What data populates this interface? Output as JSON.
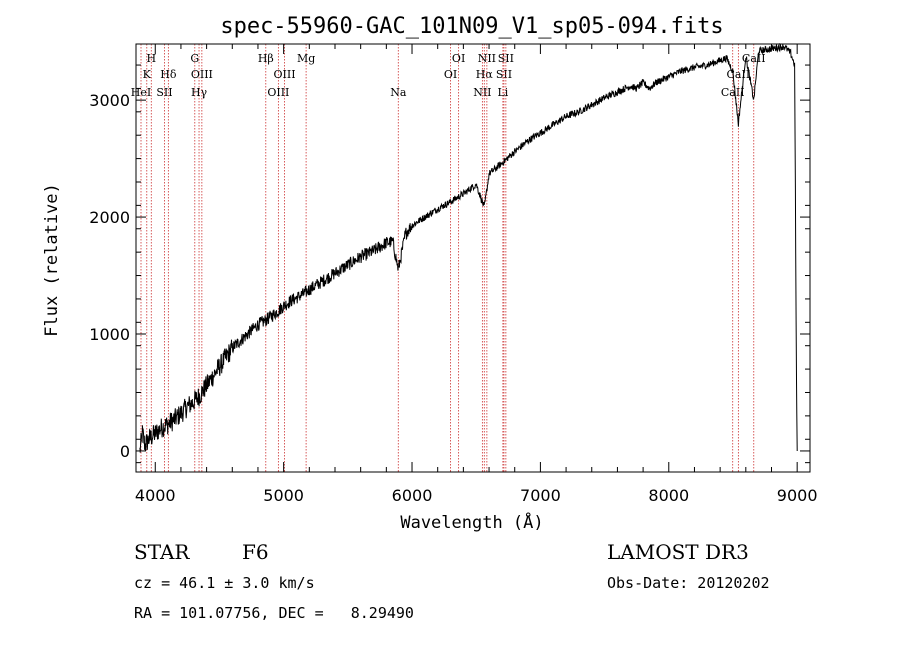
{
  "chart_data": {
    "type": "line",
    "title": "spec-55960-GAC_101N09_V1_sp05-094.fits",
    "xlabel": "Wavelength (Å)",
    "ylabel": "Flux (relative)",
    "xlim": [
      3850,
      9100
    ],
    "ylim": [
      -180,
      3480
    ],
    "xticks": [
      4000,
      5000,
      6000,
      7000,
      8000,
      9000
    ],
    "yticks": [
      0,
      1000,
      2000,
      3000
    ],
    "series": [
      {
        "name": "flux",
        "x": [
          3880,
          3900,
          3920,
          3950,
          4000,
          4050,
          4100,
          4150,
          4200,
          4250,
          4300,
          4350,
          4400,
          4450,
          4500,
          4550,
          4600,
          4650,
          4700,
          4750,
          4800,
          4850,
          4900,
          4950,
          5000,
          5050,
          5100,
          5150,
          5200,
          5300,
          5400,
          5500,
          5600,
          5700,
          5800,
          5850,
          5893,
          5950,
          6000,
          6100,
          6200,
          6300,
          6400,
          6500,
          6563,
          6600,
          6700,
          6800,
          6900,
          7000,
          7100,
          7200,
          7300,
          7400,
          7500,
          7600,
          7700,
          7750,
          7800,
          7850,
          7900,
          8000,
          8100,
          8200,
          8300,
          8400,
          8450,
          8498,
          8542,
          8600,
          8662,
          8700,
          8800,
          8900,
          8950,
          8980,
          8995,
          9000
        ],
        "y": [
          0,
          150,
          50,
          100,
          150,
          200,
          230,
          270,
          320,
          380,
          420,
          480,
          560,
          640,
          720,
          800,
          880,
          930,
          980,
          1030,
          1080,
          1110,
          1150,
          1190,
          1240,
          1280,
          1310,
          1340,
          1380,
          1450,
          1520,
          1590,
          1660,
          1710,
          1780,
          1790,
          1550,
          1860,
          1930,
          2000,
          2070,
          2130,
          2200,
          2280,
          2080,
          2370,
          2460,
          2560,
          2650,
          2720,
          2790,
          2860,
          2900,
          2960,
          3020,
          3070,
          3120,
          3100,
          3150,
          3100,
          3150,
          3200,
          3250,
          3280,
          3300,
          3340,
          3360,
          3250,
          2800,
          3380,
          3000,
          3420,
          3440,
          3460,
          3400,
          3300,
          600,
          0
        ]
      }
    ],
    "line_markers": [
      {
        "w": 3934,
        "label": "K",
        "row": 2
      },
      {
        "w": 3969,
        "label": "H",
        "row": 1
      },
      {
        "w": 3889,
        "label": "HeI",
        "row": 3
      },
      {
        "w": 4072,
        "label": "SII",
        "row": 3
      },
      {
        "w": 4102,
        "label": "Hδ",
        "row": 2
      },
      {
        "w": 4308,
        "label": "G",
        "row": 1
      },
      {
        "w": 4341,
        "label": "Hγ",
        "row": 3
      },
      {
        "w": 4363,
        "label": "OIII",
        "row": 2
      },
      {
        "w": 4861,
        "label": "Hβ",
        "row": 1
      },
      {
        "w": 4959,
        "label": "OIII",
        "row": 3
      },
      {
        "w": 5007,
        "label": "OIII",
        "row": 2
      },
      {
        "w": 5175,
        "label": "Mg",
        "row": 1
      },
      {
        "w": 5893,
        "label": "Na",
        "row": 3
      },
      {
        "w": 6300,
        "label": "OI",
        "row": 2
      },
      {
        "w": 6363,
        "label": "OI",
        "row": 1
      },
      {
        "w": 6548,
        "label": "NII",
        "row": 3
      },
      {
        "w": 6563,
        "label": "Hα",
        "row": 2
      },
      {
        "w": 6583,
        "label": "NII",
        "row": 1
      },
      {
        "w": 6716,
        "label": "SII",
        "row": 2
      },
      {
        "w": 6731,
        "label": "SII",
        "row": 1
      },
      {
        "w": 6708,
        "label": "Li",
        "row": 3
      },
      {
        "w": 8498,
        "label": "CaII",
        "row": 3
      },
      {
        "w": 8542,
        "label": "CaII",
        "row": 2
      },
      {
        "w": 8662,
        "label": "CaII",
        "row": 1
      }
    ]
  },
  "info": {
    "class": "STAR",
    "subclass": "F6",
    "survey": "LAMOST DR3",
    "cz": "cz = 46.1 ± 3.0 km/s",
    "obs_date": "Obs-Date: 20120202",
    "coords": "RA = 101.07756, DEC =   8.29490"
  },
  "colors": {
    "line_marker": "#cc3333",
    "spectrum": "#000000"
  }
}
